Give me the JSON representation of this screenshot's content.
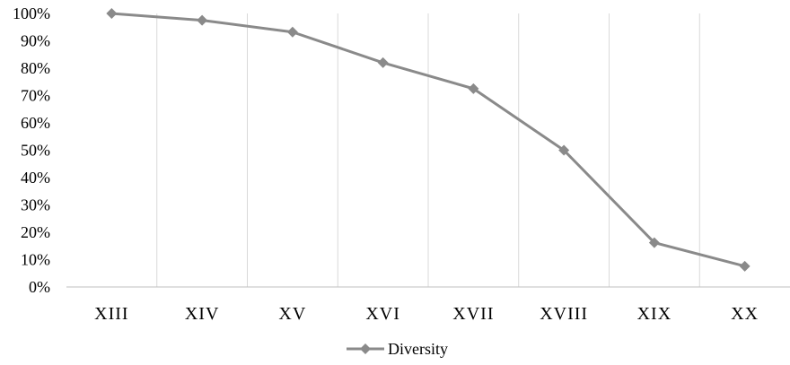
{
  "chart_data": {
    "type": "line",
    "categories": [
      "XIII",
      "XIV",
      "XV",
      "XVI",
      "XVII",
      "XVIII",
      "XIX",
      "XX"
    ],
    "series": [
      {
        "name": "Diversity",
        "values": [
          100,
          97.5,
          93.2,
          82,
          72.5,
          50,
          16.2,
          7.6
        ],
        "color": "#8a8a8a",
        "marker": "diamond"
      }
    ],
    "ylim": [
      0,
      100
    ],
    "yticks": [
      "0%",
      "10%",
      "20%",
      "30%",
      "40%",
      "50%",
      "60%",
      "70%",
      "80%",
      "90%",
      "100%"
    ],
    "grid": "vertical",
    "gridColor": "#d9d9d9",
    "axisColor": "#bfbfbf",
    "legend": "bottom-center",
    "title": "",
    "xlabel": "",
    "ylabel": ""
  }
}
